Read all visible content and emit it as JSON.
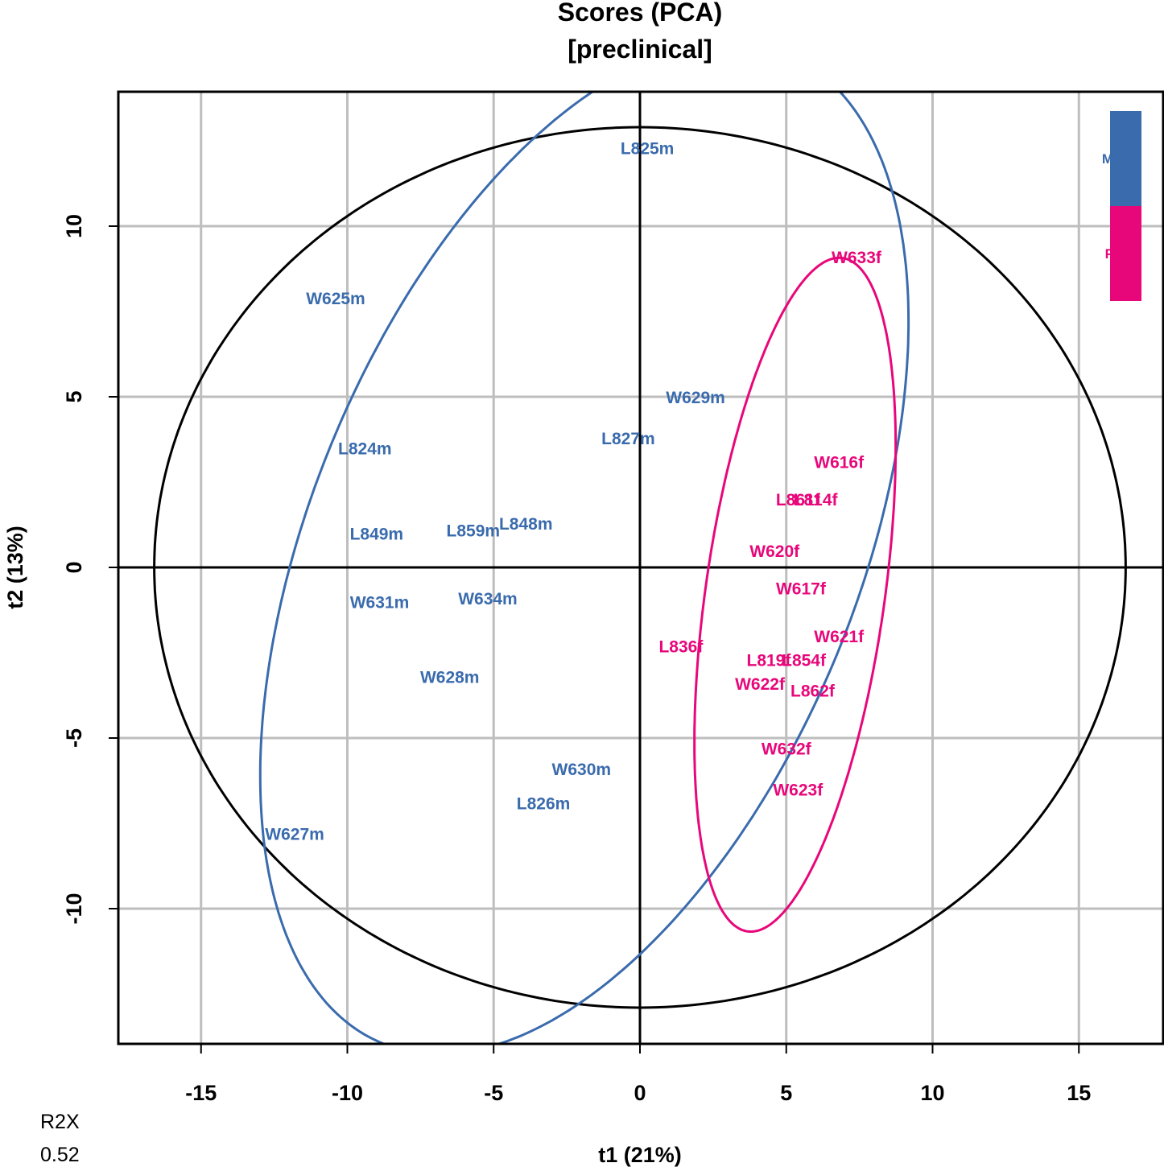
{
  "chart_data": {
    "type": "scatter",
    "title": "Scores (PCA)",
    "subtitle": "[preclinical]",
    "xlabel": "t1 (21%)",
    "ylabel": "t2 (13%)",
    "xlim": [
      -18,
      18
    ],
    "ylim": [
      -14,
      14
    ],
    "xticks": [
      -15,
      -10,
      -5,
      0,
      5,
      10,
      15
    ],
    "yticks": [
      -10,
      -5,
      0,
      5,
      10
    ],
    "grid": true,
    "legend_position": "top-right",
    "stats": {
      "label": "R2X",
      "value": "0.52"
    },
    "series": [
      {
        "name": "M",
        "color": "#3A6BAD",
        "points": [
          {
            "label": "L825m",
            "x": 0.25,
            "y": 12.3
          },
          {
            "label": "W625m",
            "x": -10.4,
            "y": 7.9
          },
          {
            "label": "W629m",
            "x": 1.9,
            "y": 5.0
          },
          {
            "label": "L827m",
            "x": -0.4,
            "y": 3.8
          },
          {
            "label": "L824m",
            "x": -9.4,
            "y": 3.5
          },
          {
            "label": "L848m",
            "x": -3.9,
            "y": 1.3
          },
          {
            "label": "L859m",
            "x": -5.7,
            "y": 1.1
          },
          {
            "label": "L849m",
            "x": -9.0,
            "y": 1.0
          },
          {
            "label": "W631m",
            "x": -8.9,
            "y": -1.0
          },
          {
            "label": "W634m",
            "x": -5.2,
            "y": -0.9
          },
          {
            "label": "W628m",
            "x": -6.5,
            "y": -3.2
          },
          {
            "label": "W630m",
            "x": -2.0,
            "y": -5.9
          },
          {
            "label": "L826m",
            "x": -3.3,
            "y": -6.9
          },
          {
            "label": "W627m",
            "x": -11.8,
            "y": -7.8
          }
        ]
      },
      {
        "name": "F",
        "color": "#E8077A",
        "points": [
          {
            "label": "W633f",
            "x": 7.4,
            "y": 9.1
          },
          {
            "label": "W616f",
            "x": 6.8,
            "y": 3.1
          },
          {
            "label": "L814f",
            "x": 6.0,
            "y": 2.0
          },
          {
            "label": "L861f",
            "x": 5.4,
            "y": 2.0
          },
          {
            "label": "W620f",
            "x": 4.6,
            "y": 0.5
          },
          {
            "label": "W617f",
            "x": 5.5,
            "y": -0.6
          },
          {
            "label": "W621f",
            "x": 6.8,
            "y": -2.0
          },
          {
            "label": "L836f",
            "x": 1.4,
            "y": -2.3
          },
          {
            "label": "L854f",
            "x": 5.6,
            "y": -2.7
          },
          {
            "label": "L819f",
            "x": 4.4,
            "y": -2.7
          },
          {
            "label": "W622f",
            "x": 4.1,
            "y": -3.4
          },
          {
            "label": "L862f",
            "x": 5.9,
            "y": -3.6
          },
          {
            "label": "W632f",
            "x": 5.0,
            "y": -5.3
          },
          {
            "label": "W623f",
            "x": 5.4,
            "y": -6.5
          }
        ]
      }
    ],
    "ellipses": [
      {
        "name": "hotelling",
        "color": "#000000",
        "cx": 0,
        "cy": 0,
        "rx": 16.6,
        "ry": 12.9,
        "angle": 0
      },
      {
        "name": "M",
        "color": "#3A6BAD",
        "cx": -1.9,
        "cy": 0.55,
        "rx": 16.1,
        "ry": 9.1,
        "angle": 61.6
      },
      {
        "name": "F",
        "color": "#E8077A",
        "cx": 5.3,
        "cy": -0.8,
        "rx": 10.0,
        "ry": 3.05,
        "angle": 80.4
      }
    ]
  }
}
